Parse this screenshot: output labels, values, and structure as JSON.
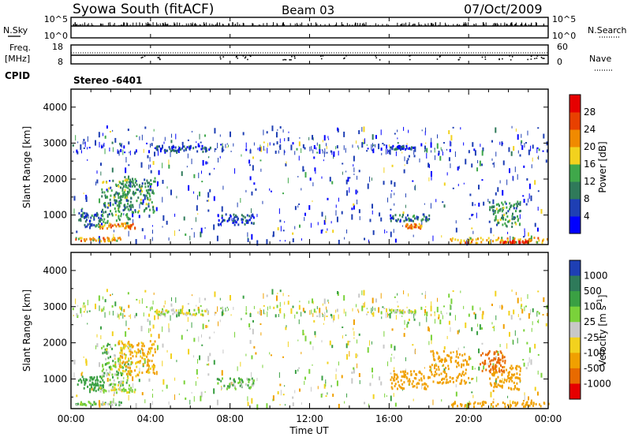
{
  "header": {
    "title": "Syowa South (fitACF)",
    "beam": "Beam 03",
    "date": "07/Oct/2009"
  },
  "top_panel": {
    "left_label_nsky": "N.Sky",
    "left_label_freq": "Freq.",
    "left_label_mhz": "[MHz]",
    "left_label_cpid": "CPID",
    "right_label_nsearch": "N.Search",
    "right_label_nave": "Nave",
    "nsky_ticks": [
      "10^5",
      "10^0"
    ],
    "nsearch_ticks": [
      "10^5",
      "10^0"
    ],
    "freq_ticks": [
      "18",
      "8"
    ],
    "nave_ticks": [
      "60",
      "0"
    ],
    "cpid_text": "Stereo -6401"
  },
  "time_axis": {
    "label": "Time UT",
    "ticks": [
      "00:00",
      "04:00",
      "08:00",
      "12:00",
      "16:00",
      "20:00",
      "00:00"
    ]
  },
  "chart_data": [
    {
      "type": "heatmap",
      "panel": "power",
      "ylabel": "Slant Range [km]",
      "yticks": [
        1000,
        2000,
        3000,
        4000
      ],
      "ylim": [
        180,
        4500
      ],
      "xlim_hours": [
        0,
        24
      ],
      "colorbar": {
        "label": "Power [dB]",
        "ticks": [
          "4",
          "8",
          "12",
          "16",
          "20",
          "24",
          "28"
        ],
        "colors": [
          "#0000ff",
          "#1e3fb4",
          "#2f7a5a",
          "#3fa84a",
          "#f2d21e",
          "#f08a00",
          "#e84000",
          "#e60000"
        ]
      },
      "features": [
        {
          "t": [
            0.3,
            1.6
          ],
          "r": [
            700,
            1100
          ],
          "value": 8
        },
        {
          "t": [
            1.5,
            3.0
          ],
          "r": [
            800,
            2000
          ],
          "value": 12
        },
        {
          "t": [
            2.3,
            4.2
          ],
          "r": [
            1100,
            2100
          ],
          "value": 12
        },
        {
          "t": [
            1.4,
            3.2
          ],
          "r": [
            650,
            800
          ],
          "value": 22
        },
        {
          "t": [
            0.2,
            2.5
          ],
          "r": [
            300,
            400
          ],
          "value": 20
        },
        {
          "t": [
            4.3,
            7.0
          ],
          "r": [
            2800,
            2950
          ],
          "value": 6
        },
        {
          "t": [
            7.3,
            9.2
          ],
          "r": [
            750,
            1050
          ],
          "value": 6
        },
        {
          "t": [
            16.0,
            17.3
          ],
          "r": [
            2850,
            2950
          ],
          "value": 6
        },
        {
          "t": [
            16.0,
            18.0
          ],
          "r": [
            850,
            1050
          ],
          "value": 8
        },
        {
          "t": [
            16.8,
            17.6
          ],
          "r": [
            650,
            780
          ],
          "value": 22
        },
        {
          "t": [
            19.0,
            24.0
          ],
          "r": [
            250,
            400
          ],
          "value": 20
        },
        {
          "t": [
            21.5,
            23.0
          ],
          "r": [
            250,
            320
          ],
          "value": 28
        },
        {
          "t": [
            21.0,
            22.6
          ],
          "r": [
            700,
            1400
          ],
          "value": 12
        }
      ]
    },
    {
      "type": "heatmap",
      "panel": "velocity",
      "ylabel": "Slant Range [km]",
      "yticks": [
        1000,
        2000,
        3000,
        4000
      ],
      "ylim": [
        180,
        4500
      ],
      "xlim_hours": [
        0,
        24
      ],
      "colorbar": {
        "label": "Velocity [m s^-1]",
        "ticks": [
          "1000",
          "500",
          "100",
          "25",
          "-25",
          "-100",
          "-500",
          "-1000"
        ],
        "colors": [
          "#1e3fb4",
          "#2e7a5a",
          "#3aa043",
          "#7ad23a",
          "#c8c8c8",
          "#f2d21e",
          "#f0a000",
          "#e86a00",
          "#e60000"
        ]
      },
      "features": [
        {
          "t": [
            0.3,
            1.6
          ],
          "r": [
            700,
            1100
          ],
          "value": 400
        },
        {
          "t": [
            1.5,
            3.0
          ],
          "r": [
            800,
            2000
          ],
          "value": 60
        },
        {
          "t": [
            2.3,
            4.2
          ],
          "r": [
            1100,
            2100
          ],
          "value": -150
        },
        {
          "t": [
            1.4,
            3.2
          ],
          "r": [
            650,
            800
          ],
          "value": 0
        },
        {
          "t": [
            0.2,
            2.5
          ],
          "r": [
            300,
            400
          ],
          "value": 60
        },
        {
          "t": [
            4.3,
            7.0
          ],
          "r": [
            2800,
            2950
          ],
          "value": 0
        },
        {
          "t": [
            7.3,
            9.2
          ],
          "r": [
            750,
            1050
          ],
          "value": 80
        },
        {
          "t": [
            16.0,
            17.3
          ],
          "r": [
            2850,
            2950
          ],
          "value": 0
        },
        {
          "t": [
            16.0,
            18.0
          ],
          "r": [
            750,
            1250
          ],
          "value": -300
        },
        {
          "t": [
            18.0,
            20.0
          ],
          "r": [
            900,
            1800
          ],
          "value": -400
        },
        {
          "t": [
            19.0,
            24.0
          ],
          "r": [
            250,
            400
          ],
          "value": -200
        },
        {
          "t": [
            21.0,
            22.6
          ],
          "r": [
            700,
            1400
          ],
          "value": -300
        },
        {
          "t": [
            20.5,
            21.8
          ],
          "r": [
            1200,
            1800
          ],
          "value": -800
        }
      ]
    }
  ]
}
